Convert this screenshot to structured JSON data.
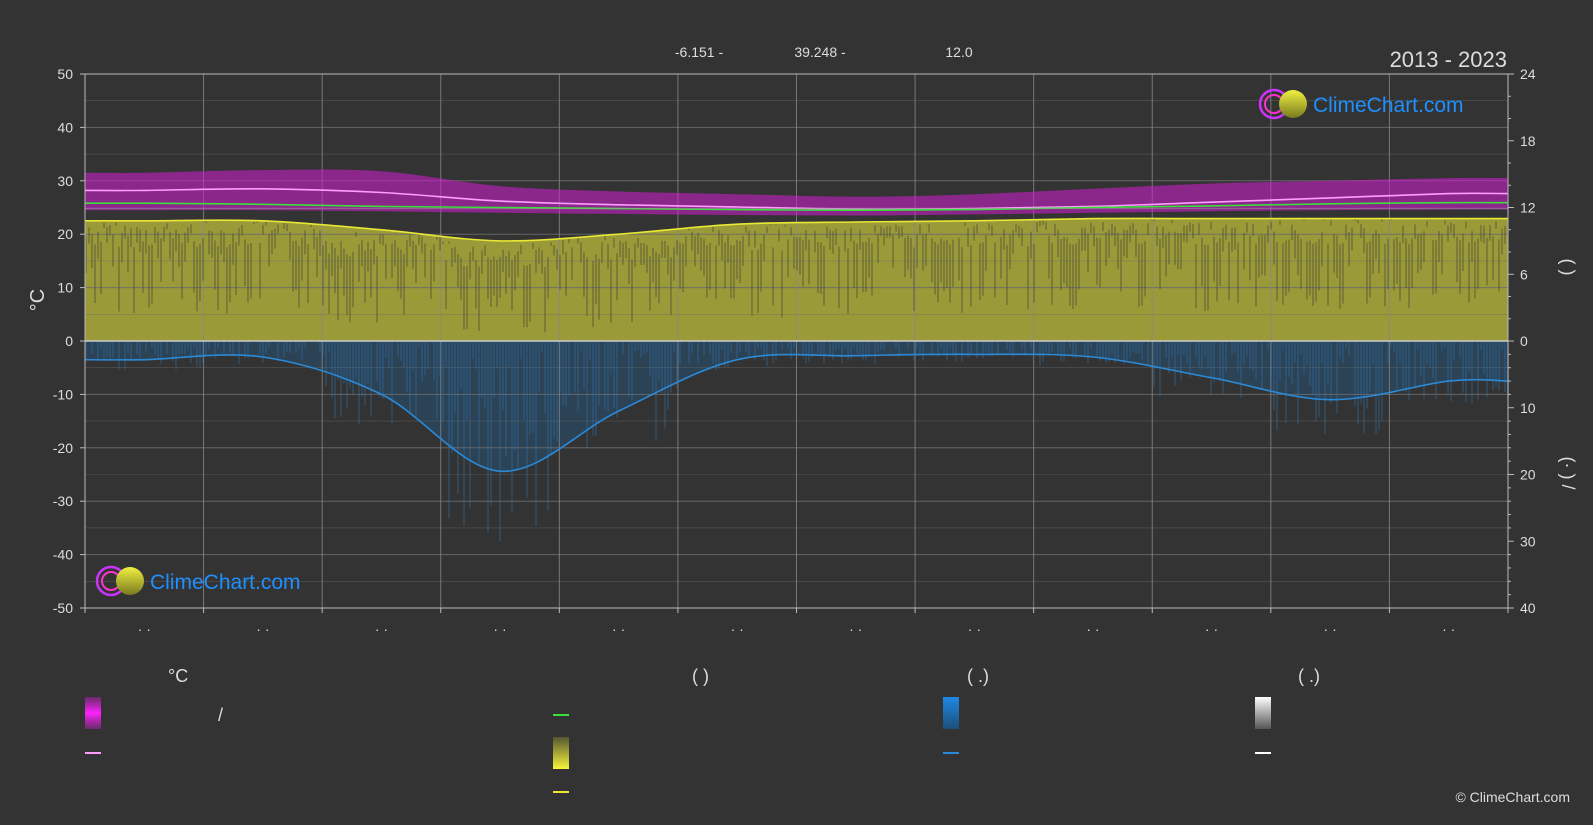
{
  "header": {
    "coords": [
      "-6.151 -",
      "39.248 -",
      "12.0"
    ],
    "period": "2013 - 2023"
  },
  "brand": {
    "name": "ClimeChart.com",
    "copyright": "© ClimeChart.com"
  },
  "colors": {
    "background": "#333333",
    "grid": "#6a6a6a",
    "sunshine_fill": "#9a9a38",
    "temp_band": "#d41cd4",
    "max_temp_line": "#ff9cff",
    "mean_temp_line": "#39e039",
    "daylight_line": "#e8e835",
    "rain_fill": "#1f5f94",
    "rain_line": "#2b8ad8",
    "brand": "#1e90ff"
  },
  "chart_data": {
    "type": "area",
    "left_axis": {
      "label": "°C",
      "ylim": [
        -50,
        50
      ],
      "ticks": [
        "50",
        "40",
        "30",
        "20",
        "10",
        "0",
        "-10",
        "-20",
        "-30",
        "-40",
        "-50"
      ]
    },
    "right_axis_top": {
      "label": "(   )",
      "ylim": [
        0,
        24
      ],
      "ticks": [
        "24",
        "18",
        "12",
        "6",
        "0"
      ]
    },
    "right_axis_bottom": {
      "label": "(·   ) /",
      "ylim": [
        0,
        40
      ],
      "ticks": [
        "10",
        "20",
        "30",
        "40"
      ]
    },
    "x_tick_labels": [
      "· ·",
      "· ·",
      "· ·",
      "· ·",
      "· ·",
      "· ·",
      "· ·",
      "· ·",
      "· ·",
      "· ·",
      "· ·",
      "· ·"
    ],
    "grid": true,
    "series": [
      {
        "key": "max_temp",
        "x": [
          0.5,
          1.5,
          2.5,
          3.5,
          4.5,
          5.5,
          6.5,
          7.5,
          8.5,
          9.5,
          10.5,
          11.5
        ],
        "values": [
          28.2,
          28.5,
          27.8,
          26.2,
          25.5,
          25.1,
          24.7,
          24.8,
          25.2,
          26.0,
          26.8,
          27.6
        ]
      },
      {
        "key": "mean_temp",
        "x": [
          0.5,
          1.5,
          2.5,
          3.5,
          4.5,
          5.5,
          6.5,
          7.5,
          8.5,
          9.5,
          10.5,
          11.5
        ],
        "values": [
          25.8,
          25.6,
          25.2,
          25.0,
          24.8,
          24.6,
          24.5,
          24.6,
          25.0,
          25.3,
          25.7,
          25.9
        ]
      },
      {
        "key": "daylight_hours",
        "x": [
          0.5,
          1.5,
          2.5,
          3.5,
          4.5,
          5.5,
          6.5,
          7.5,
          8.5,
          9.5,
          10.5,
          11.5
        ],
        "values": [
          10.8,
          10.8,
          10.0,
          9.0,
          9.6,
          10.5,
          10.7,
          10.8,
          11.0,
          11.0,
          11.0,
          11.0
        ]
      },
      {
        "key": "rainfall_mm",
        "x": [
          0.5,
          1.5,
          2.5,
          3.5,
          4.5,
          5.5,
          6.5,
          7.5,
          8.5,
          9.5,
          10.5,
          11.5
        ],
        "values": [
          2.8,
          2.4,
          8.0,
          19.5,
          10.5,
          2.8,
          2.2,
          2.0,
          2.4,
          5.5,
          8.8,
          6.0
        ]
      }
    ],
    "temp_band": {
      "min": [
        24.5,
        24.5,
        24.3,
        24.0,
        23.8,
        23.6,
        23.5,
        23.7,
        24.0,
        24.3,
        24.5,
        24.6
      ],
      "max": [
        31.5,
        32.0,
        31.8,
        29.0,
        28.0,
        27.5,
        27.0,
        27.5,
        28.5,
        29.5,
        30.0,
        30.5
      ]
    }
  },
  "legend": {
    "columns": [
      {
        "heading": "°C",
        "items": [
          {
            "type": "band",
            "label": "/"
          },
          {
            "type": "line",
            "label": ""
          }
        ]
      },
      {
        "heading": "(          )",
        "items": [
          {
            "type": "line",
            "label": ""
          },
          {
            "type": "band",
            "label": ""
          },
          {
            "type": "line",
            "label": ""
          }
        ]
      },
      {
        "heading": "(    .)",
        "items": [
          {
            "type": "band",
            "label": ""
          },
          {
            "type": "line",
            "label": ""
          }
        ]
      },
      {
        "heading": "(    .)",
        "items": [
          {
            "type": "band",
            "label": ""
          },
          {
            "type": "line",
            "label": ""
          }
        ]
      }
    ]
  }
}
